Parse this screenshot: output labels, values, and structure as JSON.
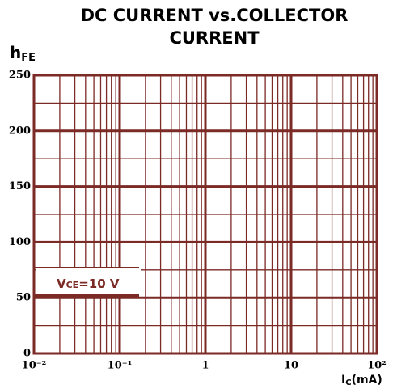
{
  "chart_data": {
    "type": "line",
    "title": "DC CURRENT vs.COLLECTOR CURRENT",
    "ylabel": [
      "h",
      "FE"
    ],
    "xlabel": [
      "I",
      "C",
      "(mA)"
    ],
    "annotation": [
      "V",
      "CE",
      "=10 V"
    ],
    "xscale": "log",
    "xlim": [
      0.01,
      100
    ],
    "xticks": [
      {
        "value": 0.01,
        "label": "10⁻²"
      },
      {
        "value": 0.1,
        "label": "10⁻¹"
      },
      1,
      10,
      {
        "value": 100,
        "label": "10²"
      }
    ],
    "xminor": [
      0.02,
      0.03,
      0.04,
      0.05,
      0.06,
      0.07,
      0.08,
      0.09,
      0.2,
      0.3,
      0.4,
      0.5,
      0.6,
      0.7,
      0.8,
      0.9,
      2,
      3,
      4,
      5,
      6,
      7,
      8,
      9,
      20,
      30,
      40,
      50,
      60,
      70,
      80,
      90
    ],
    "ylim": [
      0,
      250
    ],
    "yticks": [
      0,
      50,
      100,
      150,
      200,
      250
    ],
    "yminor": [
      25,
      75,
      125,
      175,
      225
    ],
    "grid": true,
    "color": "#7b2a25"
  }
}
